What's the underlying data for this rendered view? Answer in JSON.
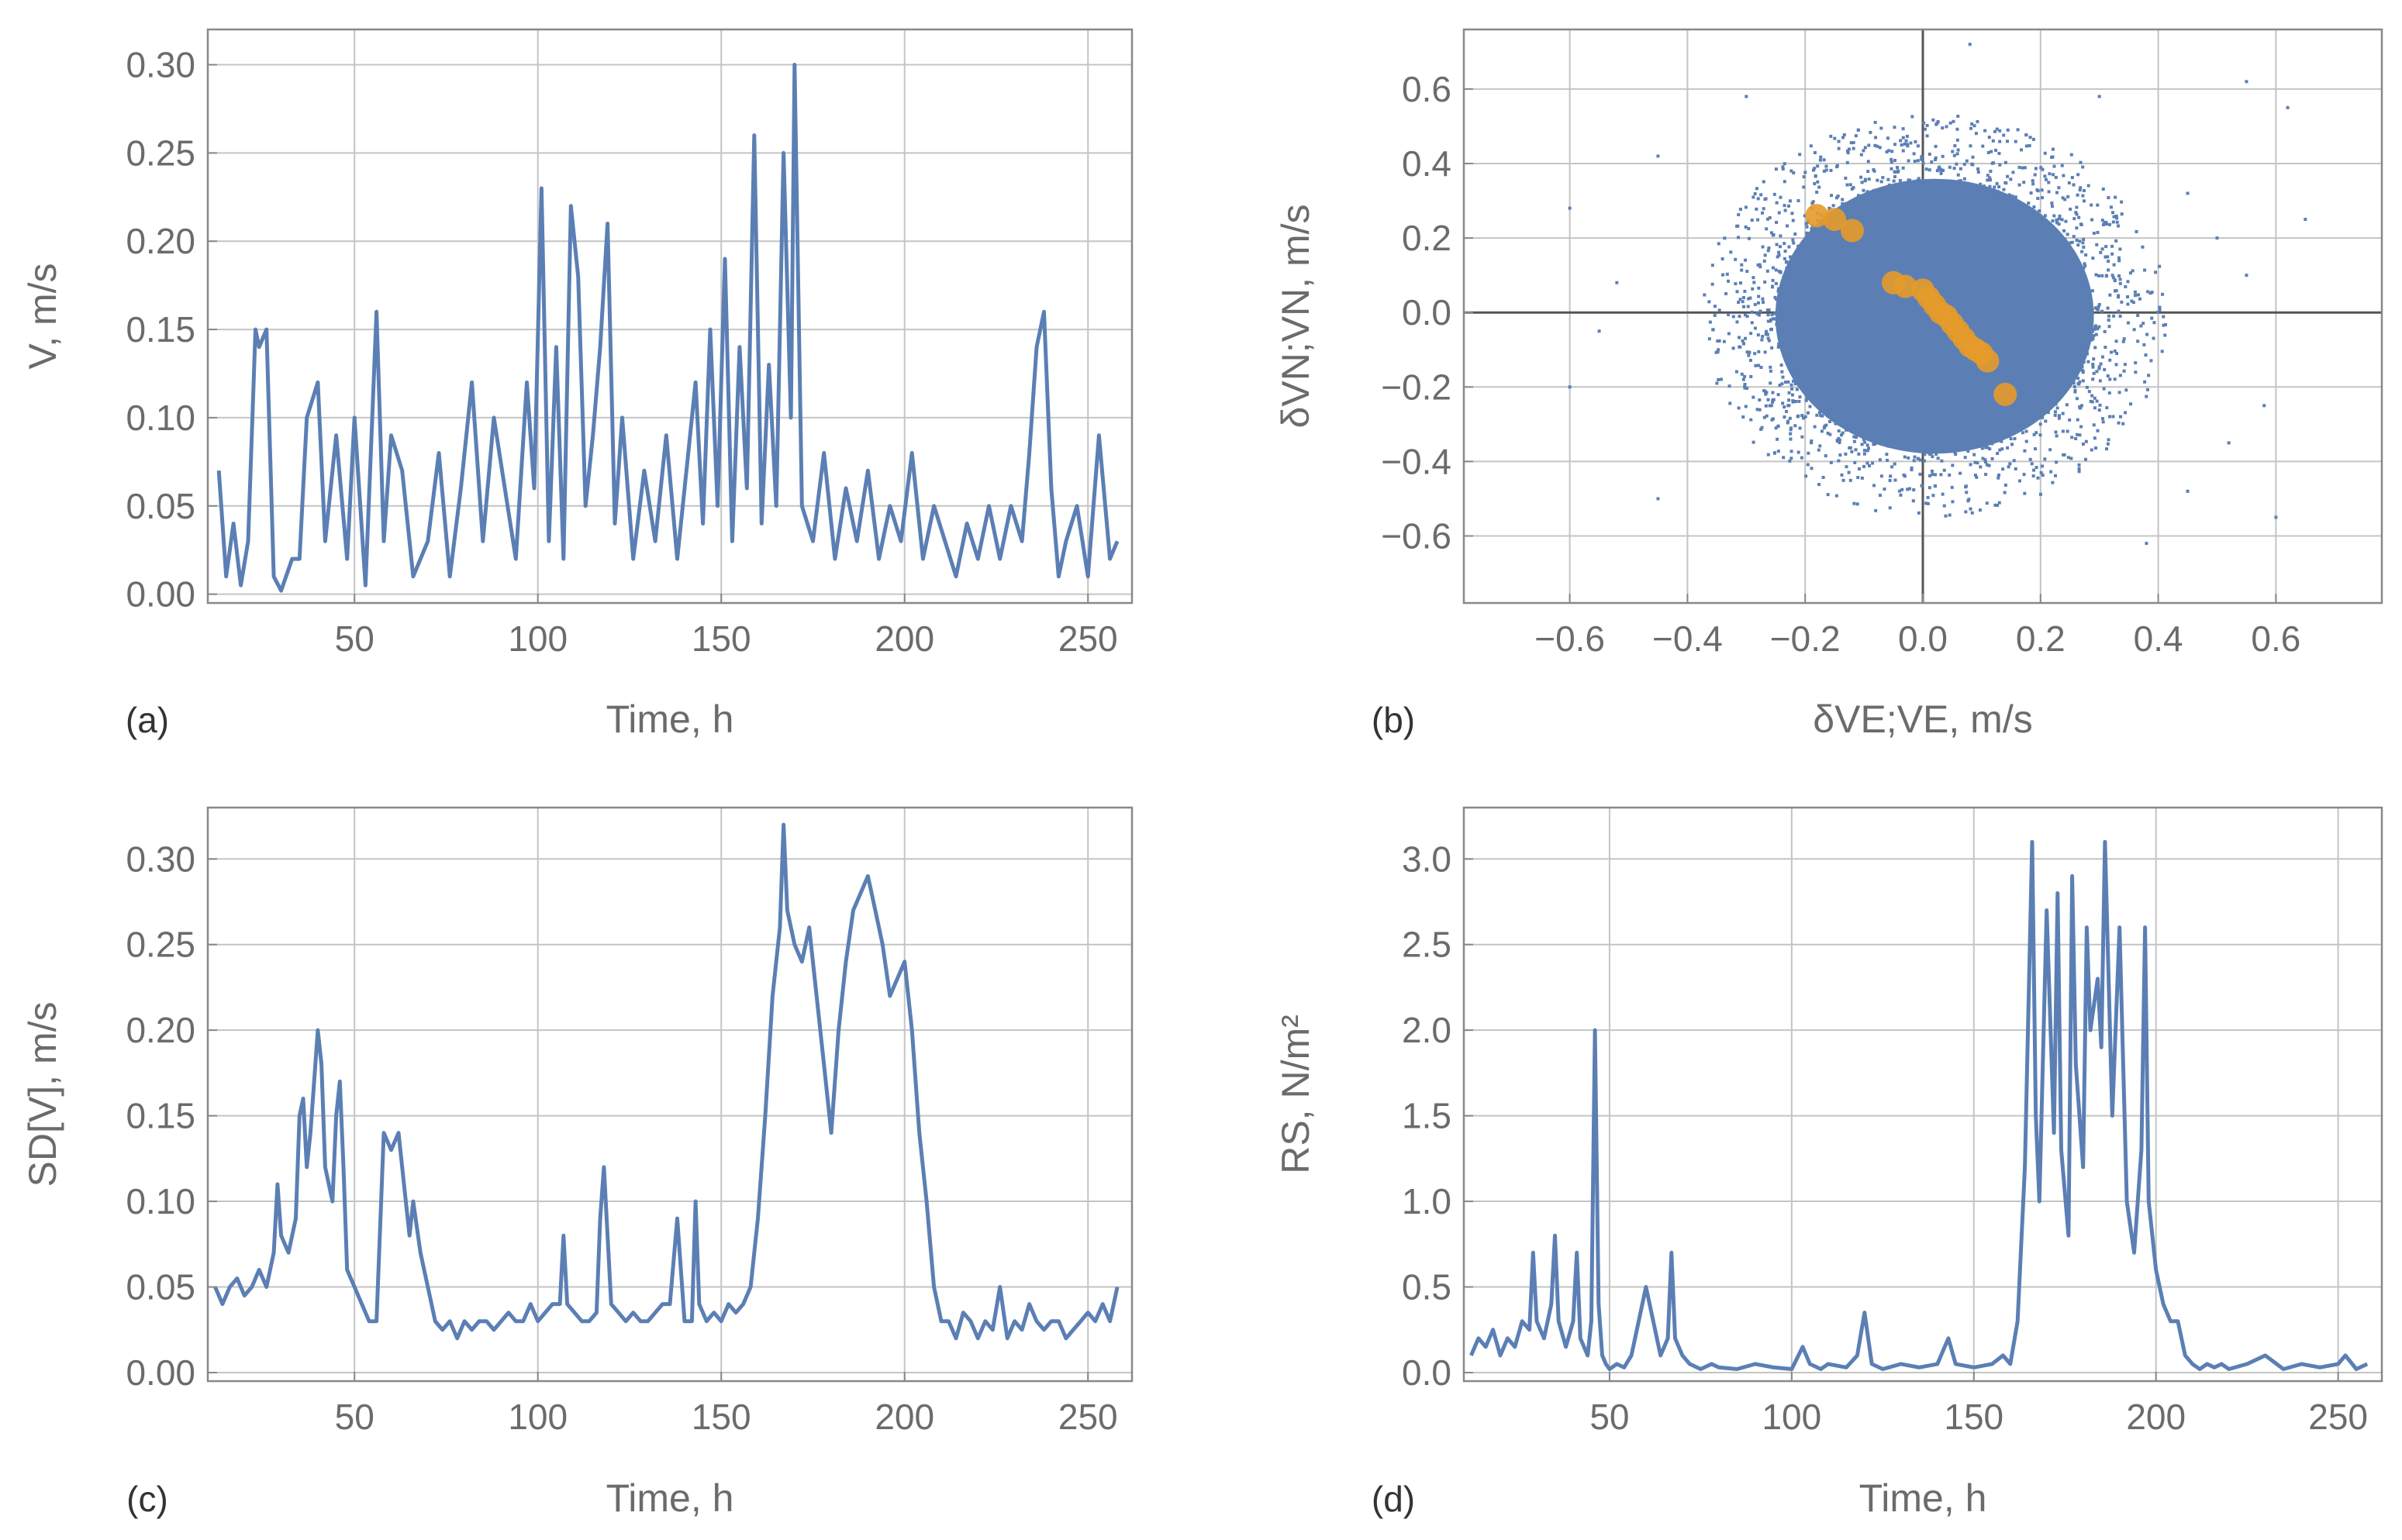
{
  "colors": {
    "series": "#5b7fb4",
    "highlight": "#e69b2a"
  },
  "chart_data": [
    {
      "id": "a",
      "type": "line",
      "panel_letter": "(a)",
      "xlabel": "Time, h",
      "ylabel": "V, m/s",
      "xlim": [
        10,
        262
      ],
      "ylim": [
        -0.005,
        0.32
      ],
      "xticks": [
        50,
        100,
        150,
        200,
        250
      ],
      "xtick_labels": [
        "50",
        "100",
        "150",
        "200",
        "250"
      ],
      "yticks": [
        0,
        0.05,
        0.1,
        0.15,
        0.2,
        0.25,
        0.3
      ],
      "ytick_labels": [
        "0.00",
        "0.05",
        "0.10",
        "0.15",
        "0.20",
        "0.25",
        "0.30"
      ],
      "series": [
        {
          "name": "V",
          "x": [
            13,
            15,
            17,
            19,
            21,
            23,
            24,
            26,
            28,
            30,
            33,
            35,
            37,
            40,
            42,
            45,
            48,
            50,
            53,
            56,
            58,
            60,
            63,
            66,
            70,
            73,
            76,
            79,
            82,
            85,
            88,
            91,
            94,
            97,
            99,
            101,
            103,
            105,
            107,
            109,
            111,
            113,
            115,
            117,
            119,
            121,
            123,
            126,
            129,
            132,
            135,
            138,
            141,
            143,
            145,
            147,
            149,
            151,
            153,
            155,
            157,
            159,
            161,
            163,
            165,
            167,
            169,
            170,
            172,
            175,
            178,
            181,
            184,
            187,
            190,
            193,
            196,
            199,
            202,
            205,
            208,
            211,
            214,
            217,
            220,
            223,
            226,
            229,
            232,
            234,
            236,
            238,
            240,
            242,
            244,
            247,
            250,
            253,
            256,
            258
          ],
          "y": [
            0.07,
            0.01,
            0.04,
            0.005,
            0.03,
            0.15,
            0.14,
            0.15,
            0.01,
            0.002,
            0.02,
            0.02,
            0.1,
            0.12,
            0.03,
            0.09,
            0.02,
            0.1,
            0.005,
            0.16,
            0.03,
            0.09,
            0.07,
            0.01,
            0.03,
            0.08,
            0.01,
            0.06,
            0.12,
            0.03,
            0.1,
            0.06,
            0.02,
            0.12,
            0.06,
            0.23,
            0.03,
            0.14,
            0.02,
            0.22,
            0.18,
            0.05,
            0.09,
            0.14,
            0.21,
            0.04,
            0.1,
            0.02,
            0.07,
            0.03,
            0.09,
            0.02,
            0.08,
            0.12,
            0.04,
            0.15,
            0.05,
            0.19,
            0.03,
            0.14,
            0.06,
            0.26,
            0.04,
            0.13,
            0.05,
            0.25,
            0.1,
            0.3,
            0.05,
            0.03,
            0.08,
            0.02,
            0.06,
            0.03,
            0.07,
            0.02,
            0.05,
            0.03,
            0.08,
            0.02,
            0.05,
            0.03,
            0.01,
            0.04,
            0.02,
            0.05,
            0.02,
            0.05,
            0.03,
            0.08,
            0.14,
            0.16,
            0.06,
            0.01,
            0.03,
            0.05,
            0.01,
            0.09,
            0.02,
            0.03
          ]
        }
      ]
    },
    {
      "id": "b",
      "type": "scatter",
      "panel_letter": "(b)",
      "xlabel": "δVE;VE, m/s",
      "ylabel": "δVN;VN, m/s",
      "xlim": [
        -0.78,
        0.78
      ],
      "ylim": [
        -0.78,
        0.76
      ],
      "xticks": [
        -0.6,
        -0.4,
        -0.2,
        0,
        0.2,
        0.4,
        0.6
      ],
      "xtick_labels": [
        "−0.6",
        "−0.4",
        "−0.2",
        "0.0",
        "0.2",
        "0.4",
        "0.6"
      ],
      "yticks": [
        -0.6,
        -0.4,
        -0.2,
        0,
        0.2,
        0.4,
        0.6
      ],
      "ytick_labels": [
        "−0.6",
        "−0.4",
        "−0.2",
        "0.0",
        "0.2",
        "0.4",
        "0.6"
      ],
      "series": [
        {
          "name": "δV cloud",
          "center": [
            0.02,
            -0.01
          ],
          "radius_x": 0.33,
          "radius_y": 0.45,
          "outliers": [
            [
              -0.6,
              0.28
            ],
            [
              -0.55,
              -0.05
            ],
            [
              -0.45,
              0.42
            ],
            [
              -0.52,
              0.08
            ],
            [
              0.45,
              0.32
            ],
            [
              0.5,
              0.2
            ],
            [
              0.55,
              0.1
            ],
            [
              0.6,
              -0.55
            ],
            [
              0.62,
              0.55
            ],
            [
              0.55,
              0.62
            ],
            [
              -0.45,
              -0.5
            ],
            [
              0.45,
              -0.48
            ],
            [
              0.52,
              -0.35
            ],
            [
              0.08,
              0.72
            ],
            [
              0.3,
              0.58
            ],
            [
              -0.3,
              0.58
            ],
            [
              0.58,
              -0.25
            ],
            [
              0.65,
              0.25
            ],
            [
              -0.6,
              -0.2
            ],
            [
              0.38,
              -0.62
            ]
          ]
        },
        {
          "name": "δV highlighted",
          "x": [
            -0.18,
            -0.15,
            -0.12,
            -0.05,
            -0.03,
            0.0,
            0.01,
            0.02,
            0.03,
            0.04,
            0.05,
            0.06,
            0.07,
            0.08,
            0.09,
            0.1,
            0.11,
            0.14
          ],
          "y": [
            0.26,
            0.25,
            0.22,
            0.08,
            0.07,
            0.06,
            0.04,
            0.02,
            0.0,
            -0.01,
            -0.03,
            -0.05,
            -0.07,
            -0.09,
            -0.1,
            -0.11,
            -0.13,
            -0.22
          ]
        }
      ]
    },
    {
      "id": "c",
      "type": "line",
      "panel_letter": "(c)",
      "xlabel": "Time, h",
      "ylabel": "SD[V], m/s",
      "xlim": [
        10,
        262
      ],
      "ylim": [
        -0.005,
        0.33
      ],
      "xticks": [
        50,
        100,
        150,
        200,
        250
      ],
      "xtick_labels": [
        "50",
        "100",
        "150",
        "200",
        "250"
      ],
      "yticks": [
        0,
        0.05,
        0.1,
        0.15,
        0.2,
        0.25,
        0.3
      ],
      "ytick_labels": [
        "0.00",
        "0.05",
        "0.10",
        "0.15",
        "0.20",
        "0.25",
        "0.30"
      ],
      "series": [
        {
          "name": "SD[V]",
          "x": [
            12,
            14,
            16,
            18,
            20,
            22,
            24,
            26,
            28,
            29,
            30,
            32,
            34,
            35,
            36,
            37,
            38,
            40,
            41,
            42,
            44,
            45,
            46,
            47,
            48,
            50,
            52,
            54,
            56,
            58,
            60,
            62,
            64,
            65,
            66,
            68,
            70,
            72,
            74,
            76,
            78,
            80,
            82,
            84,
            86,
            88,
            90,
            92,
            94,
            96,
            98,
            100,
            102,
            104,
            106,
            107,
            108,
            110,
            112,
            114,
            116,
            117,
            118,
            120,
            122,
            124,
            126,
            128,
            130,
            132,
            134,
            136,
            138,
            140,
            142,
            143,
            144,
            146,
            148,
            150,
            152,
            154,
            156,
            158,
            160,
            162,
            164,
            166,
            167,
            168,
            170,
            172,
            174,
            176,
            178,
            180,
            182,
            184,
            186,
            188,
            190,
            192,
            194,
            196,
            198,
            200,
            202,
            204,
            206,
            208,
            210,
            212,
            214,
            216,
            218,
            220,
            222,
            224,
            226,
            228,
            230,
            232,
            234,
            236,
            238,
            240,
            242,
            244,
            246,
            248,
            250,
            252,
            254,
            256,
            258
          ],
          "y": [
            0.05,
            0.04,
            0.05,
            0.055,
            0.045,
            0.05,
            0.06,
            0.05,
            0.07,
            0.11,
            0.08,
            0.07,
            0.09,
            0.15,
            0.16,
            0.12,
            0.14,
            0.2,
            0.18,
            0.12,
            0.1,
            0.15,
            0.17,
            0.12,
            0.06,
            0.05,
            0.04,
            0.03,
            0.03,
            0.14,
            0.13,
            0.14,
            0.1,
            0.08,
            0.1,
            0.07,
            0.05,
            0.03,
            0.025,
            0.03,
            0.02,
            0.03,
            0.025,
            0.03,
            0.03,
            0.025,
            0.03,
            0.035,
            0.03,
            0.03,
            0.04,
            0.03,
            0.035,
            0.04,
            0.04,
            0.08,
            0.04,
            0.035,
            0.03,
            0.03,
            0.035,
            0.09,
            0.12,
            0.04,
            0.035,
            0.03,
            0.035,
            0.03,
            0.03,
            0.035,
            0.04,
            0.04,
            0.09,
            0.03,
            0.03,
            0.1,
            0.04,
            0.03,
            0.035,
            0.03,
            0.04,
            0.035,
            0.04,
            0.05,
            0.09,
            0.15,
            0.22,
            0.26,
            0.32,
            0.27,
            0.25,
            0.24,
            0.26,
            0.22,
            0.18,
            0.14,
            0.2,
            0.24,
            0.27,
            0.28,
            0.29,
            0.27,
            0.25,
            0.22,
            0.23,
            0.24,
            0.2,
            0.14,
            0.1,
            0.05,
            0.03,
            0.03,
            0.02,
            0.035,
            0.03,
            0.02,
            0.03,
            0.025,
            0.05,
            0.02,
            0.03,
            0.025,
            0.04,
            0.03,
            0.025,
            0.03,
            0.03,
            0.02,
            0.025,
            0.03,
            0.035,
            0.03,
            0.04,
            0.03,
            0.05
          ]
        }
      ]
    },
    {
      "id": "d",
      "type": "line",
      "panel_letter": "(d)",
      "xlabel": "Time, h",
      "ylabel": "RS, N/m²",
      "xlim": [
        10,
        262
      ],
      "ylim": [
        -0.05,
        3.3
      ],
      "xticks": [
        50,
        100,
        150,
        200,
        250
      ],
      "xtick_labels": [
        "50",
        "100",
        "150",
        "200",
        "250"
      ],
      "yticks": [
        0,
        0.5,
        1,
        1.5,
        2,
        2.5,
        3
      ],
      "ytick_labels": [
        "0.0",
        "0.5",
        "1.0",
        "1.5",
        "2.0",
        "2.5",
        "3.0"
      ],
      "series": [
        {
          "name": "RS",
          "x": [
            12,
            14,
            16,
            18,
            20,
            22,
            24,
            26,
            28,
            29,
            30,
            32,
            34,
            35,
            36,
            38,
            40,
            41,
            42,
            44,
            45,
            46,
            47,
            48,
            49,
            50,
            52,
            54,
            56,
            58,
            60,
            62,
            64,
            66,
            67,
            68,
            70,
            72,
            75,
            78,
            80,
            85,
            90,
            95,
            100,
            103,
            105,
            108,
            110,
            115,
            118,
            120,
            122,
            125,
            130,
            135,
            140,
            143,
            145,
            150,
            155,
            158,
            160,
            162,
            164,
            166,
            167,
            168,
            170,
            172,
            173,
            174,
            176,
            177,
            178,
            180,
            181,
            182,
            184,
            185,
            186,
            188,
            190,
            192,
            194,
            196,
            197,
            198,
            200,
            202,
            204,
            206,
            208,
            210,
            212,
            214,
            216,
            218,
            220,
            225,
            230,
            235,
            240,
            245,
            250,
            252,
            255,
            258
          ],
          "y": [
            0.1,
            0.2,
            0.15,
            0.25,
            0.1,
            0.2,
            0.15,
            0.3,
            0.25,
            0.7,
            0.3,
            0.2,
            0.4,
            0.8,
            0.3,
            0.15,
            0.3,
            0.7,
            0.2,
            0.1,
            0.3,
            2.0,
            0.4,
            0.1,
            0.05,
            0.02,
            0.05,
            0.03,
            0.1,
            0.3,
            0.5,
            0.3,
            0.1,
            0.2,
            0.7,
            0.2,
            0.1,
            0.05,
            0.02,
            0.05,
            0.03,
            0.02,
            0.05,
            0.03,
            0.02,
            0.15,
            0.05,
            0.02,
            0.05,
            0.03,
            0.1,
            0.35,
            0.05,
            0.02,
            0.05,
            0.03,
            0.05,
            0.2,
            0.05,
            0.03,
            0.05,
            0.1,
            0.05,
            0.3,
            1.2,
            3.1,
            1.5,
            1.0,
            2.7,
            1.4,
            2.8,
            1.3,
            0.8,
            2.9,
            1.8,
            1.2,
            2.6,
            2.0,
            2.3,
            1.9,
            3.1,
            1.5,
            2.6,
            1.0,
            0.7,
            1.3,
            2.6,
            1.0,
            0.6,
            0.4,
            0.3,
            0.3,
            0.1,
            0.05,
            0.02,
            0.05,
            0.03,
            0.05,
            0.02,
            0.05,
            0.1,
            0.02,
            0.05,
            0.03,
            0.05,
            0.1,
            0.02,
            0.05
          ]
        }
      ]
    }
  ]
}
